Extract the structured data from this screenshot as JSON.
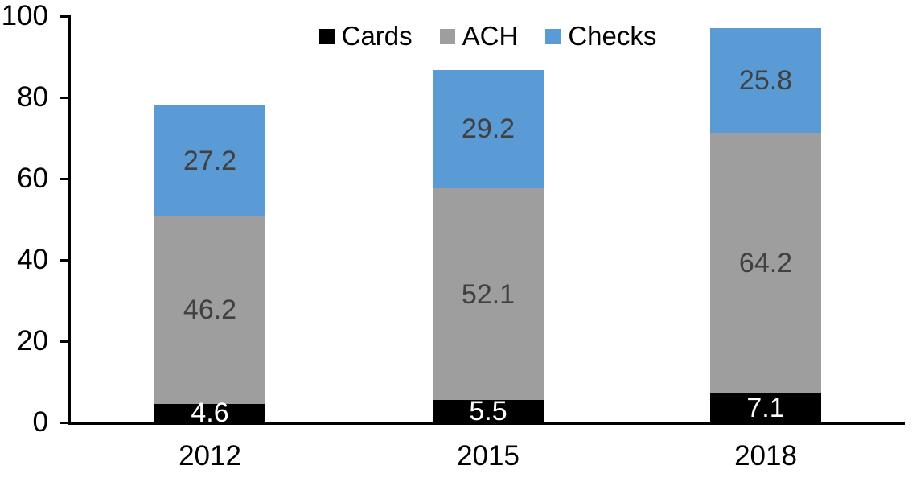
{
  "chart_data": {
    "type": "bar",
    "stacked": true,
    "title": "",
    "categories": [
      "2012",
      "2015",
      "2018"
    ],
    "series": [
      {
        "name": "Cards",
        "color": "#000000",
        "label_color": "#ffffff",
        "values": [
          4.6,
          5.5,
          7.1
        ]
      },
      {
        "name": "ACH",
        "color": "#9e9e9e",
        "label_color": "#404040",
        "values": [
          46.2,
          52.1,
          64.2
        ]
      },
      {
        "name": "Checks",
        "color": "#5b9bd5",
        "label_color": "#404040",
        "values": [
          27.2,
          29.2,
          25.8
        ]
      }
    ],
    "totals": [
      78.0,
      86.8,
      97.1
    ],
    "xlabel": "",
    "ylabel": "",
    "ylim": [
      0,
      100
    ],
    "yticks": [
      0,
      20,
      40,
      60,
      80,
      100
    ],
    "grid": false,
    "legend_position": "top",
    "axis_color": "#000000",
    "background": "#ffffff",
    "value_decimals": 1
  }
}
